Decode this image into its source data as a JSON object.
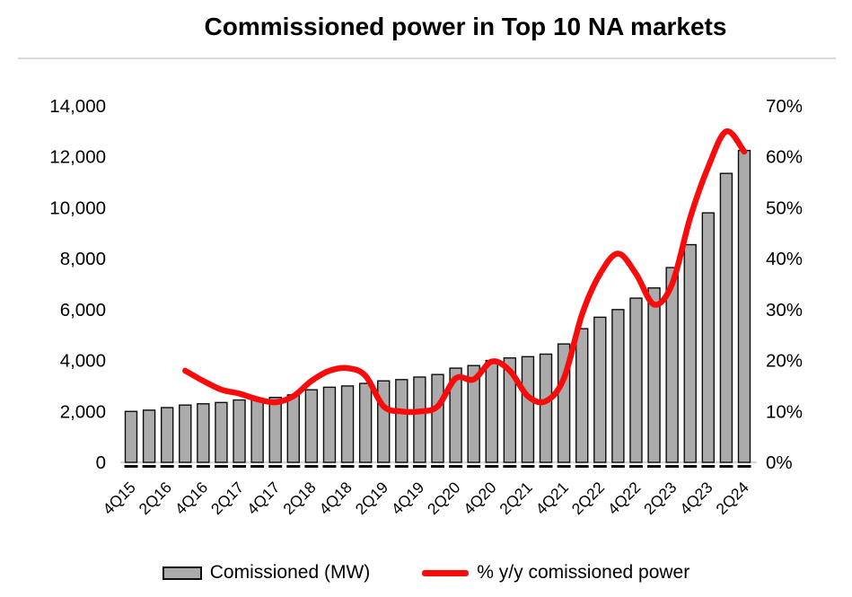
{
  "title": "Commissioned power in Top 10 NA markets",
  "legend": {
    "bar_label": "Comissioned (MW)",
    "line_label": "% y/y comissioned power"
  },
  "colors": {
    "bar_fill": "#ababab",
    "bar_border": "#0d0d0d",
    "line": "#f90b0b",
    "axis_line": "#d9d9d9",
    "tick_dash": "#0d0d0d",
    "text": "#000000"
  },
  "chart_data": {
    "type": "bar",
    "subtype": "bar-with-smooth-line-overlay",
    "title": "Commissioned power in Top 10 NA markets",
    "xlabel": "",
    "ylabel_left": "Comissioned (MW)",
    "ylabel_right": "% y/y comissioned power",
    "grid": false,
    "legend_position": "bottom",
    "categories": [
      "4Q15",
      "1Q16",
      "2Q16",
      "3Q16",
      "4Q16",
      "1Q17",
      "2Q17",
      "3Q17",
      "4Q17",
      "1Q18",
      "2Q18",
      "3Q18",
      "4Q18",
      "1Q19",
      "2Q19",
      "3Q19",
      "4Q19",
      "1Q20",
      "2Q20",
      "3Q20",
      "4Q20",
      "1Q21",
      "2Q21",
      "3Q21",
      "4Q21",
      "1Q22",
      "2Q22",
      "3Q22",
      "4Q22",
      "1Q23",
      "2Q23",
      "3Q23",
      "4Q23",
      "1Q24",
      "2Q24"
    ],
    "x_tick_labels_shown": [
      "4Q15",
      "2Q16",
      "4Q16",
      "2Q17",
      "4Q17",
      "2Q18",
      "4Q18",
      "2Q19",
      "4Q19",
      "2Q20",
      "4Q20",
      "2Q21",
      "4Q21",
      "2Q22",
      "4Q22",
      "2Q23",
      "4Q23",
      "2Q24"
    ],
    "series": [
      {
        "name": "Comissioned (MW)",
        "type": "bar",
        "axis": "left",
        "values": [
          2000,
          2050,
          2150,
          2250,
          2300,
          2350,
          2450,
          2500,
          2550,
          2650,
          2850,
          2950,
          3000,
          3100,
          3200,
          3250,
          3350,
          3450,
          3700,
          3800,
          4000,
          4100,
          4150,
          4250,
          4650,
          5250,
          5700,
          6000,
          6450,
          6850,
          7650,
          8550,
          9800,
          11350,
          12250
        ]
      },
      {
        "name": "% y/y comissioned power",
        "type": "line",
        "axis": "right",
        "values": [
          null,
          null,
          null,
          18,
          16,
          14.3,
          13.5,
          12.4,
          11.8,
          13,
          16,
          18,
          18.5,
          17,
          11,
          10,
          10,
          11,
          16.5,
          16.3,
          19.8,
          18,
          13,
          12,
          16.5,
          29,
          37,
          41,
          37,
          31,
          35,
          48,
          58,
          65,
          61
        ]
      }
    ],
    "left_axis": {
      "min": 0,
      "max": 14000,
      "step": 2000,
      "tick_labels": [
        "0",
        "2,000",
        "4,000",
        "6,000",
        "8,000",
        "10,000",
        "12,000",
        "14,000"
      ]
    },
    "right_axis": {
      "min": 0,
      "max": 70,
      "step": 10,
      "tick_labels": [
        "0%",
        "10%",
        "20%",
        "30%",
        "40%",
        "50%",
        "60%",
        "70%"
      ]
    }
  }
}
